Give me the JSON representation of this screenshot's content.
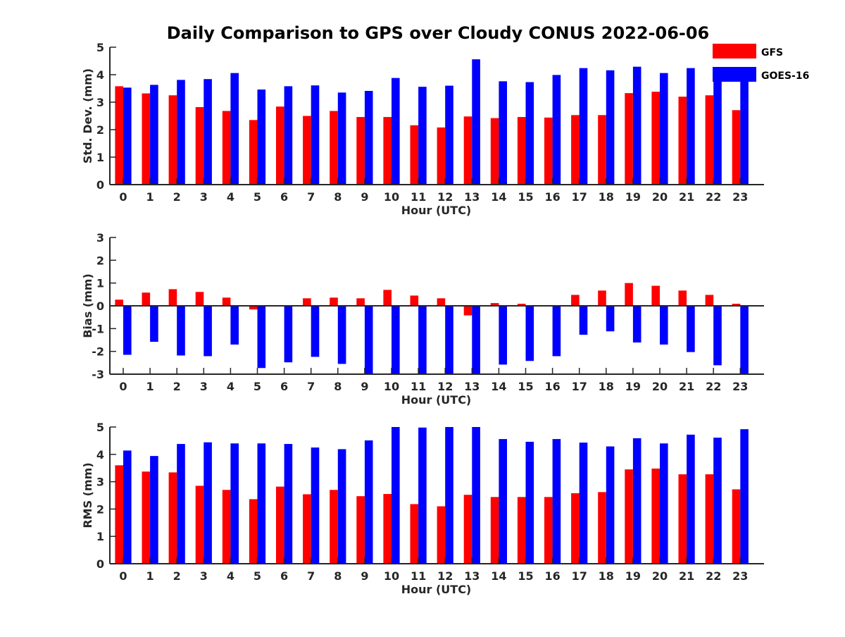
{
  "title": "Daily Comparison to GPS over Cloudy CONUS 2022-06-06",
  "legend": {
    "items": [
      {
        "name": "GFS",
        "color": "#ff0000"
      },
      {
        "name": "GOES-16",
        "color": "#0000ff"
      }
    ]
  },
  "chart_data": [
    {
      "type": "bar",
      "id": "std",
      "xlabel": "Hour (UTC)",
      "ylabel": "Std. Dev. (mm)",
      "ylim": [
        0,
        5
      ],
      "yticks": [
        0,
        1,
        2,
        3,
        4,
        5
      ],
      "categories": [
        "0",
        "1",
        "2",
        "3",
        "4",
        "5",
        "6",
        "7",
        "8",
        "9",
        "10",
        "11",
        "12",
        "13",
        "14",
        "15",
        "16",
        "17",
        "18",
        "19",
        "20",
        "21",
        "22",
        "23"
      ],
      "series": [
        {
          "name": "GFS",
          "color": "#ff0000",
          "values": [
            3.58,
            3.32,
            3.25,
            2.82,
            2.68,
            2.35,
            2.84,
            2.5,
            2.68,
            2.46,
            2.46,
            2.16,
            2.08,
            2.48,
            2.42,
            2.46,
            2.44,
            2.53,
            2.53,
            3.33,
            3.38,
            3.2,
            3.25,
            2.71
          ]
        },
        {
          "name": "GOES-16",
          "color": "#0000ff",
          "values": [
            3.53,
            3.63,
            3.81,
            3.84,
            4.06,
            3.46,
            3.58,
            3.61,
            3.35,
            3.41,
            3.88,
            3.56,
            3.6,
            4.56,
            3.76,
            3.73,
            3.99,
            4.24,
            4.16,
            4.29,
            4.06,
            4.24,
            3.78,
            3.95
          ]
        }
      ]
    },
    {
      "type": "bar",
      "id": "bias",
      "xlabel": "Hour (UTC)",
      "ylabel": "Bias (mm)",
      "ylim": [
        -3,
        3
      ],
      "yticks": [
        -3,
        -2,
        -1,
        0,
        1,
        2,
        3
      ],
      "categories": [
        "0",
        "1",
        "2",
        "3",
        "4",
        "5",
        "6",
        "7",
        "8",
        "9",
        "10",
        "11",
        "12",
        "13",
        "14",
        "15",
        "16",
        "17",
        "18",
        "19",
        "20",
        "21",
        "22",
        "23"
      ],
      "series": [
        {
          "name": "GFS",
          "color": "#ff0000",
          "values": [
            0.27,
            0.58,
            0.73,
            0.61,
            0.36,
            -0.16,
            0.0,
            0.33,
            0.36,
            0.33,
            0.7,
            0.45,
            0.33,
            -0.42,
            0.12,
            0.09,
            0.03,
            0.48,
            0.67,
            1.0,
            0.88,
            0.67,
            0.48,
            0.09
          ]
        },
        {
          "name": "GOES-16",
          "color": "#0000ff",
          "values": [
            -2.15,
            -1.58,
            -2.18,
            -2.21,
            -1.7,
            -2.73,
            -2.48,
            -2.24,
            -2.55,
            -3.0,
            -3.0,
            -3.0,
            -3.0,
            -3.0,
            -2.58,
            -2.42,
            -2.21,
            -1.27,
            -1.12,
            -1.61,
            -1.7,
            -2.03,
            -2.61,
            -3.0
          ]
        }
      ]
    },
    {
      "type": "bar",
      "id": "rms",
      "xlabel": "Hour (UTC)",
      "ylabel": "RMS (mm)",
      "ylim": [
        0,
        5
      ],
      "yticks": [
        0,
        1,
        2,
        3,
        4,
        5
      ],
      "categories": [
        "0",
        "1",
        "2",
        "3",
        "4",
        "5",
        "6",
        "7",
        "8",
        "9",
        "10",
        "11",
        "12",
        "13",
        "14",
        "15",
        "16",
        "17",
        "18",
        "19",
        "20",
        "21",
        "22",
        "23"
      ],
      "series": [
        {
          "name": "GFS",
          "color": "#ff0000",
          "values": [
            3.6,
            3.37,
            3.34,
            2.85,
            2.7,
            2.36,
            2.82,
            2.54,
            2.7,
            2.47,
            2.55,
            2.18,
            2.1,
            2.52,
            2.44,
            2.44,
            2.44,
            2.58,
            2.62,
            3.45,
            3.48,
            3.27,
            3.27,
            2.72
          ]
        },
        {
          "name": "GOES-16",
          "color": "#0000ff",
          "values": [
            4.14,
            3.94,
            4.38,
            4.44,
            4.4,
            4.4,
            4.38,
            4.25,
            4.19,
            4.51,
            5.0,
            4.98,
            5.0,
            5.0,
            4.56,
            4.46,
            4.56,
            4.43,
            4.29,
            4.59,
            4.4,
            4.72,
            4.61,
            4.92
          ]
        }
      ]
    }
  ]
}
